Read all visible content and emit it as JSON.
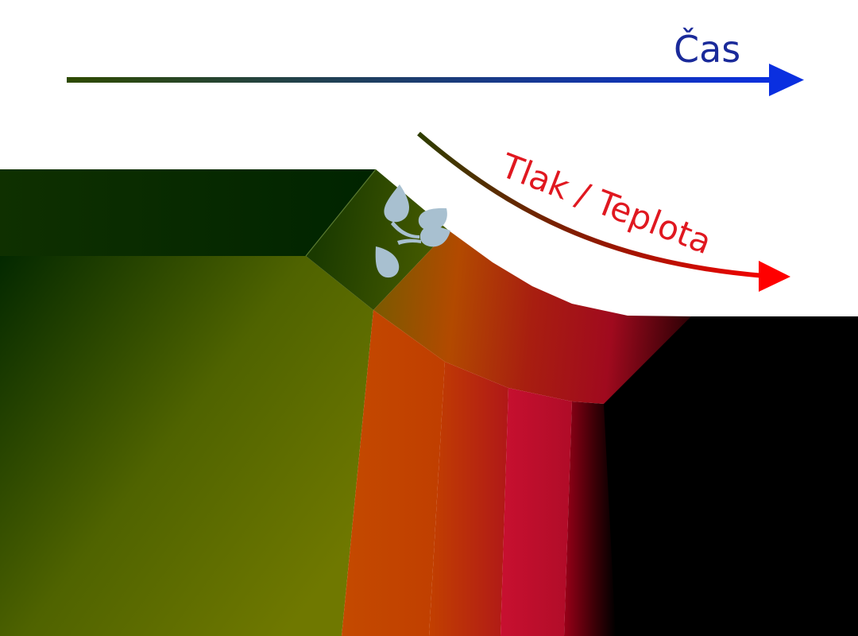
{
  "labels": {
    "time": "Čas",
    "pressure_temperature": "Tlak / Teplota"
  },
  "colors": {
    "time_arrow_start": "#2e4a00",
    "time_arrow_end": "#0a2fe0",
    "pt_arrow_start": "#2e3d00",
    "pt_arrow_end": "#ff0000",
    "layer_dark_green": "#002600",
    "layer_olive": "#6b7a00",
    "layer_orange": "#c04500",
    "layer_red": "#c8102e",
    "layer_dark_red": "#7a0010",
    "core_black": "#000000",
    "water_drops": "#a8c0d0"
  },
  "icons": {
    "water": "water-drops-icon"
  }
}
